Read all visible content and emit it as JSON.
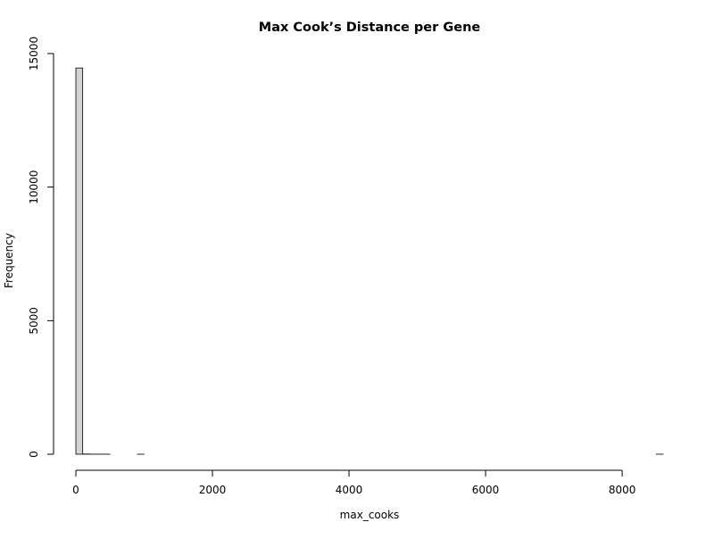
{
  "chart_data": {
    "type": "bar",
    "title": "Max Cook’s Distance per Gene",
    "xlabel": "max_cooks",
    "ylabel": "Frequency",
    "bin_width": 100,
    "xlim": [
      0,
      8600
    ],
    "ylim": [
      0,
      15000
    ],
    "x_ticks": [
      0,
      2000,
      4000,
      6000,
      8000
    ],
    "y_ticks": [
      0,
      5000,
      10000,
      15000
    ],
    "bins": [
      {
        "start": 0,
        "end": 100,
        "count": 14460
      },
      {
        "start": 100,
        "end": 200,
        "count": 8
      },
      {
        "start": 200,
        "end": 300,
        "count": 3
      },
      {
        "start": 300,
        "end": 400,
        "count": 2
      },
      {
        "start": 400,
        "end": 500,
        "count": 1
      },
      {
        "start": 900,
        "end": 1000,
        "count": 1
      },
      {
        "start": 8500,
        "end": 8600,
        "count": 1
      }
    ],
    "bar_fill": "#d3d3d3",
    "bar_stroke": "#000000",
    "grid": false
  }
}
